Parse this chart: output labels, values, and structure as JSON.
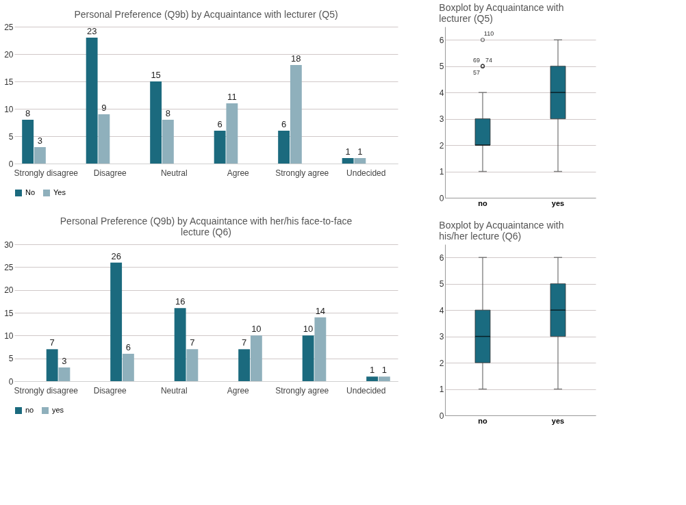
{
  "chart_data": [
    {
      "type": "bar",
      "title": "Personal Preference (Q9b) by Acquaintance with lecturer (Q5)",
      "categories": [
        "Strongly disagree",
        "Disagree",
        "Neutral",
        "Agree",
        "Strongly agree",
        "Undecided"
      ],
      "series": [
        {
          "name": "No",
          "color": "#1b6a7e",
          "values": [
            8,
            23,
            15,
            6,
            6,
            1
          ]
        },
        {
          "name": "Yes",
          "color": "#8fb0bc",
          "values": [
            3,
            9,
            8,
            11,
            18,
            1
          ]
        }
      ],
      "ylim": [
        0,
        25
      ],
      "yticks": [
        0,
        5,
        10,
        15,
        20,
        25
      ],
      "grid": "y",
      "legend": "bottom",
      "data_labels": true
    },
    {
      "type": "box",
      "title": "Boxplot by Acquaintance with lecturer (Q5)",
      "categories": [
        "no",
        "yes"
      ],
      "series": [
        {
          "color": "#1a6b80",
          "boxes": [
            {
              "low": 1,
              "q1": 2,
              "median": 2,
              "q3": 3,
              "high": 4,
              "outliers": [
                6,
                5,
                5,
                5
              ]
            },
            {
              "low": 1,
              "q1": 3,
              "median": 4,
              "q3": 5,
              "high": 6
            }
          ]
        }
      ],
      "ylim": [
        0,
        6.5
      ],
      "yticks": [
        0,
        1,
        2,
        3,
        4,
        5,
        6
      ],
      "grid": "y",
      "annotations": [
        "110",
        "69",
        "74",
        "57"
      ]
    },
    {
      "type": "bar",
      "title": "Personal Preference (Q9b) by Acquaintance with her/his face-to-face lecture (Q6)",
      "categories": [
        "Strongly disagree",
        "Disagree",
        "Neutral",
        "Agree",
        "Strongly agree",
        "Undecided"
      ],
      "series": [
        {
          "name": "no",
          "color": "#1b6a7e",
          "values": [
            7,
            26,
            16,
            7,
            10,
            1
          ]
        },
        {
          "name": "yes",
          "color": "#8fb0bc",
          "values": [
            3,
            6,
            7,
            10,
            14,
            1
          ]
        }
      ],
      "ylim": [
        0,
        30
      ],
      "yticks": [
        0,
        5,
        10,
        15,
        20,
        25,
        30
      ],
      "grid": "y",
      "legend": "bottom",
      "data_labels": true
    },
    {
      "type": "box",
      "title": "Boxplot by Acquaintance with his/her lecture (Q6)",
      "categories": [
        "no",
        "yes"
      ],
      "series": [
        {
          "color": "#1a6b80",
          "boxes": [
            {
              "low": 1,
              "q1": 2,
              "median": 3,
              "q3": 4,
              "high": 6
            },
            {
              "low": 1,
              "q1": 3,
              "median": 4,
              "q3": 5,
              "high": 6
            }
          ]
        }
      ],
      "ylim": [
        0,
        6.5
      ],
      "yticks": [
        0,
        1,
        2,
        3,
        4,
        5,
        6
      ],
      "grid": "y"
    }
  ]
}
